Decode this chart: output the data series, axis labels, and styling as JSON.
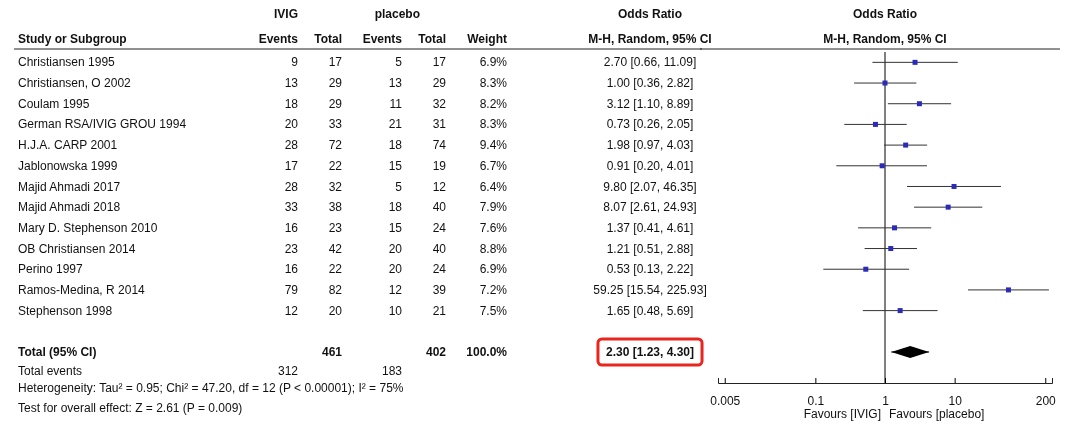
{
  "chart_data": [
    {
      "type": "other",
      "title": "Study or Subgroup",
      "categories": [
        "Christiansen 1995",
        "Christiansen, O 2002",
        "Coulam 1995",
        "German RSA/IVIG GROU 1994",
        "H.J.A. CARP 2001",
        "Jablonowska 1999",
        "Majid Ahmadi 2017",
        "Majid Ahmadi 2018",
        "Mary D. Stephenson 2010",
        "OB Christiansen 2014",
        "Perino 1997",
        "Ramos-Medina, R 2014",
        "Stephenson 1998",
        "Total (95% CI)",
        "Total events"
      ],
      "series": [
        {
          "name": "Events",
          "values": [
            9,
            13,
            18,
            20,
            28,
            17,
            28,
            33,
            16,
            23,
            16,
            79,
            12,
            null,
            312
          ]
        },
        {
          "name": "Total",
          "values": [
            17,
            29,
            29,
            33,
            72,
            22,
            32,
            38,
            23,
            42,
            22,
            82,
            20,
            461,
            null
          ]
        },
        {
          "name": "Events",
          "values": [
            5,
            13,
            11,
            21,
            18,
            15,
            5,
            18,
            15,
            20,
            20,
            12,
            10,
            null,
            183
          ]
        },
        {
          "name": "Total",
          "values": [
            17,
            29,
            32,
            31,
            74,
            19,
            12,
            40,
            24,
            40,
            24,
            39,
            21,
            402,
            null
          ]
        },
        {
          "name": "Weight",
          "values": [
            6.9,
            8.3,
            8.2,
            8.3,
            9.4,
            6.7,
            6.4,
            7.9,
            7.6,
            8.8,
            6.9,
            7.2,
            7.5,
            100.0,
            null
          ],
          "value_labels": [
            "6.9%",
            "8.3%",
            "8.2%",
            "8.3%",
            "9.4%",
            "6.7%",
            "6.4%",
            "7.9%",
            "7.6%",
            "8.8%",
            "6.9%",
            "7.2%",
            "7.5%",
            "100.0%",
            null
          ]
        },
        {
          "name": "M-H, Random, 95% CI",
          "values": [
            2.7,
            1.0,
            3.12,
            0.73,
            1.98,
            0.91,
            9.8,
            8.07,
            1.37,
            1.21,
            0.53,
            59.25,
            1.65,
            2.3,
            null
          ],
          "value_labels": [
            "2.70 [0.66, 11.09]",
            "1.00 [0.36, 2.82]",
            "3.12 [1.10, 8.89]",
            "0.73 [0.26, 2.05]",
            "1.98 [0.97, 4.03]",
            "0.91 [0.20, 4.01]",
            "9.80 [2.07, 46.35]",
            "8.07 [2.61, 24.93]",
            "1.37 [0.41, 4.61]",
            "1.21 [0.51, 2.88]",
            "0.53 [0.13, 2.22]",
            "59.25 [15.54, 225.93]",
            "1.65 [0.48, 5.69]",
            "2.30 [1.23, 4.30]",
            null
          ]
        }
      ],
      "data_labels": true,
      "annotations": [
        "IVIG",
        "placebo",
        "Odds Ratio",
        "Heterogeneity: Tau² = 0.95; Chi² = 47.20, df = 12 (P < 0.00001); I² = 75%",
        "Test for overall effect: Z = 2.61 (P = 0.009)"
      ]
    },
    {
      "type": "scatter",
      "orientation": "horizontal",
      "title": "Odds Ratio",
      "subtitle": "M-H, Random, 95% CI",
      "categories": [
        null,
        null,
        null,
        null,
        null,
        null,
        null,
        null,
        null,
        null,
        null,
        null,
        null,
        null,
        null,
        null
      ],
      "series": [
        {
          "color": "#2b2bb8",
          "marker": "square",
          "values": [
            2.7,
            1.0,
            3.12,
            0.73,
            1.98,
            0.91,
            9.8,
            8.07,
            1.37,
            1.21,
            0.53,
            59.25,
            1.65,
            null,
            null,
            null
          ],
          "errors": [
            [
              0.66,
              11.09
            ],
            [
              0.36,
              2.82
            ],
            [
              1.1,
              8.89
            ],
            [
              0.26,
              2.05
            ],
            [
              0.97,
              4.03
            ],
            [
              0.2,
              4.01
            ],
            [
              2.07,
              46.35
            ],
            [
              2.61,
              24.93
            ],
            [
              0.41,
              4.61
            ],
            [
              0.51,
              2.88
            ],
            [
              0.13,
              2.22
            ],
            [
              15.54,
              225.93
            ],
            [
              0.48,
              5.69
            ],
            null,
            null,
            null
          ]
        },
        {
          "color": "#000000",
          "marker": "diamond",
          "values": [
            null,
            null,
            null,
            null,
            null,
            null,
            null,
            null,
            null,
            null,
            null,
            null,
            null,
            null,
            2.3,
            null
          ],
          "errors": [
            null,
            null,
            null,
            null,
            null,
            null,
            null,
            null,
            null,
            null,
            null,
            null,
            null,
            null,
            [
              1.23,
              4.3
            ],
            null
          ]
        }
      ],
      "log": "x",
      "xlim": [
        0.004,
        250
      ],
      "xticks": [
        0.005,
        0.1,
        1,
        10,
        200
      ],
      "ref_lines": [
        {
          "axis": "x",
          "value": 1,
          "color": "#000000"
        }
      ],
      "annotations": [
        "Favours [IVIG]",
        "Favours [placebo]"
      ]
    }
  ]
}
